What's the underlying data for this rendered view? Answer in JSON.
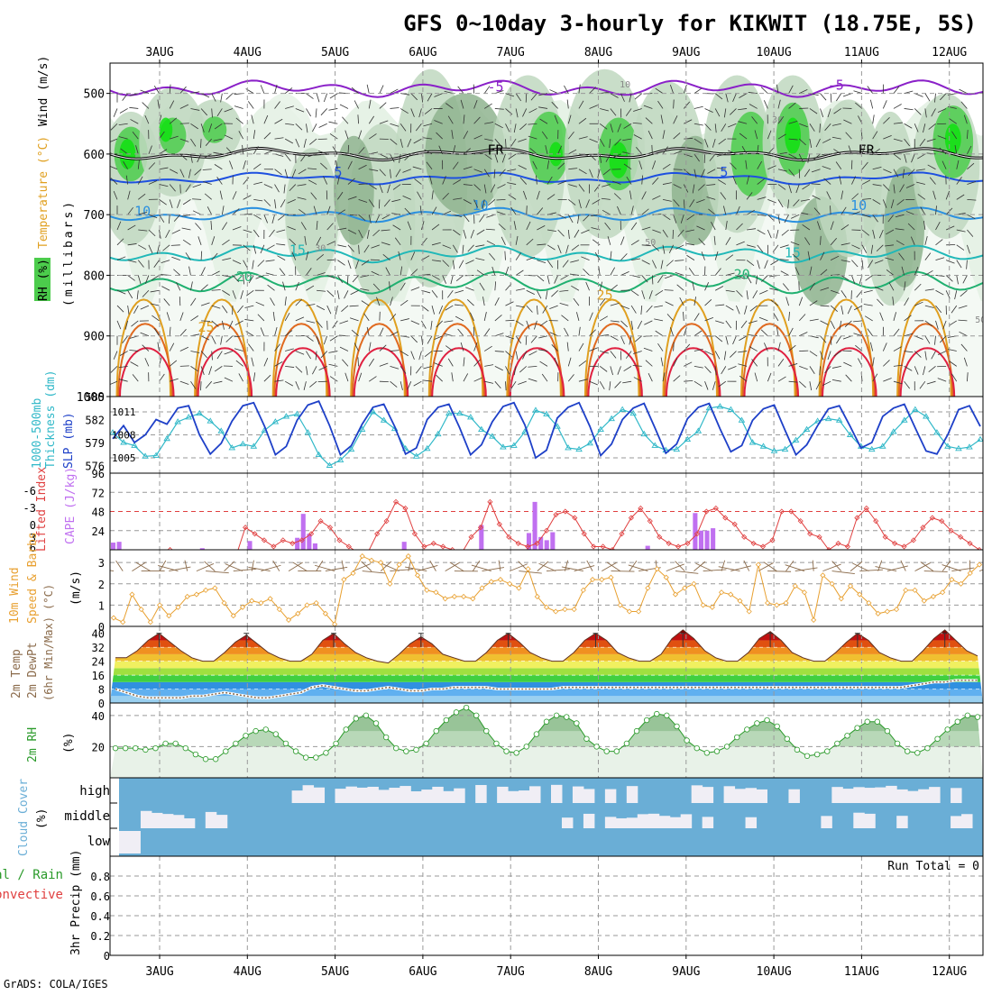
{
  "header": {
    "title": "GFS 0~10day 3-hourly for KIKWIT (18.75E, 5S)",
    "footer": "GrADS: COLA/IGES"
  },
  "dates": [
    "3AUG",
    "4AUG",
    "5AUG",
    "6AUG",
    "7AUG",
    "8AUG",
    "9AUG",
    "10AUG",
    "11AUG",
    "12AUG"
  ],
  "colors": {
    "rh_light": "#e6f2e6",
    "rh_mid": "#c0d8c0",
    "rh_dark": "#8fb48f",
    "rh_green": "#4ccc4c",
    "rh_bright": "#10e010",
    "t_m5": "#8a20c8",
    "t_5": "#1e50e0",
    "t_10": "#2a90e0",
    "t_15": "#20b8b8",
    "t_20": "#20b070",
    "t_25": "#e0a020",
    "t_30": "#e06a20",
    "t_35": "#e02040",
    "slp": "#1e40c8",
    "thickness": "#30b8c8",
    "cape": "#c070f0",
    "lifted": "#e04040",
    "wind10": "#e8a030",
    "dewpt": "#8a6a4a",
    "rh2m": "#2a9a2a",
    "cloud": "#6aaed6",
    "cloud_clear": "#f0eef5",
    "grid": "#999999"
  },
  "chart_data": [
    {
      "panel": "upper-air",
      "type": "heatmap",
      "label_left_1": "RH (%)",
      "label_left_2": "Temperature (°C)",
      "label_left_3": "Wind (m/s)",
      "ylabel": "(millibars)",
      "y_ticks": [
        500,
        600,
        700,
        800,
        900,
        1000
      ],
      "ylim": [
        1000,
        450
      ],
      "contour_labels": [
        {
          "text": "-5",
          "t": 14.9,
          "p": 497,
          "series": "t_m5"
        },
        {
          "text": "-5",
          "t": 28.3,
          "p": 494,
          "series": "t_m5"
        },
        {
          "text": "5",
          "t": 8.7,
          "p": 637,
          "series": "t_5"
        },
        {
          "text": "5",
          "t": 23.9,
          "p": 637,
          "series": "t_5"
        },
        {
          "text": "10",
          "t": 1.0,
          "p": 702,
          "series": "t_10"
        },
        {
          "text": "10",
          "t": 14.3,
          "p": 692,
          "series": "t_10"
        },
        {
          "text": "10",
          "t": 29.2,
          "p": 692,
          "series": "t_10"
        },
        {
          "text": "15",
          "t": 7.1,
          "p": 766,
          "series": "t_15"
        },
        {
          "text": "15",
          "t": 26.6,
          "p": 770,
          "series": "t_15"
        },
        {
          "text": "20",
          "t": 5.0,
          "p": 810,
          "series": "t_20"
        },
        {
          "text": "20",
          "t": 24.6,
          "p": 806,
          "series": "t_20"
        },
        {
          "text": "25",
          "t": 3.5,
          "p": 893,
          "series": "t_25"
        },
        {
          "text": "25",
          "t": 19.2,
          "p": 840,
          "series": "t_25"
        },
        {
          "text": "FR",
          "t": 14.9,
          "p": 601,
          "series": "freezing"
        },
        {
          "text": "FR",
          "t": 29.5,
          "p": 601,
          "series": "freezing"
        },
        {
          "text": "30",
          "t": 8.0,
          "p": 760,
          "series": "rh"
        },
        {
          "text": "50",
          "t": 21.0,
          "p": 750,
          "series": "rh"
        },
        {
          "text": "50",
          "t": 34.0,
          "p": 878,
          "series": "rh"
        },
        {
          "text": "30",
          "t": 26.0,
          "p": 548,
          "series": "rh"
        },
        {
          "text": "10",
          "t": 20.0,
          "p": 490,
          "series": "rh"
        }
      ]
    },
    {
      "panel": "slp-thickness",
      "type": "line",
      "label_left_1": "1000-500mb",
      "label_left_2": "Thickness (dm)",
      "label_right": "SLP (mb)",
      "y_ticks_thickness": [
        576,
        579,
        582,
        585
      ],
      "y_ticks_slp": [
        1005,
        1008,
        1011
      ],
      "ylim_thickness": [
        575,
        585
      ],
      "ylim_slp": [
        1003,
        1013
      ],
      "series": [
        {
          "name": "SLP",
          "values": [
            1007.5,
            1009.2,
            1007.0,
            1008.0,
            1010.0,
            1009.4,
            1011.5,
            1011.8,
            1008.0,
            1005.5,
            1006.9,
            1009.8,
            1011.8,
            1012.2,
            1009.1,
            1005.4,
            1006.5,
            1009.9,
            1011.9,
            1012.4,
            1009.2,
            1005.4,
            1006.6,
            1009.4,
            1011.6,
            1012.0,
            1009.1,
            1005.5,
            1006.3,
            1010.0,
            1011.6,
            1012.0,
            1008.9,
            1005.4,
            1006.7,
            1009.7,
            1011.7,
            1012.2,
            1009.3,
            1005.0,
            1006.0,
            1010.2,
            1011.6,
            1012.2,
            1009.1,
            1005.3,
            1006.8,
            1010.0,
            1011.5,
            1012.1,
            1008.9,
            1005.6,
            1006.8,
            1010.1,
            1011.6,
            1012.1,
            1008.8,
            1005.8,
            1006.6,
            1009.9,
            1011.4,
            1011.9,
            1008.6,
            1005.4,
            1006.7,
            1009.2,
            1011.4,
            1011.8,
            1009.1,
            1006.3,
            1007.0,
            1010.4,
            1011.5,
            1012.0,
            1008.9,
            1005.9,
            1005.5,
            1008.0,
            1011.3,
            1011.8,
            1009.1
          ]
        },
        {
          "name": "Thickness",
          "values": [
            580.3,
            579.0,
            578.6,
            577.2,
            577.3,
            579.5,
            581.7,
            582.3,
            582.8,
            581.8,
            580.5,
            578.3,
            578.8,
            578.5,
            580.6,
            581.7,
            582.4,
            582.7,
            580.3,
            577.4,
            576.0,
            576.7,
            578.1,
            580.7,
            583.0,
            581.9,
            580.8,
            578.2,
            577.2,
            578.2,
            580.1,
            582.8,
            582.8,
            582.3,
            580.7,
            579.8,
            578.4,
            578.6,
            580.4,
            583.2,
            582.7,
            581.1,
            578.3,
            578.1,
            578.9,
            580.7,
            582.1,
            583.3,
            582.8,
            580.1,
            578.6,
            578.0,
            578.1,
            579.4,
            580.5,
            583.5,
            583.7,
            583.3,
            581.9,
            579.0,
            578.5,
            577.9,
            578.1,
            579.3,
            580.7,
            581.8,
            582.1,
            581.9,
            580.0,
            578.5,
            578.1,
            578.5,
            580.4,
            581.9,
            583.3,
            582.4,
            580.3,
            578.5,
            578.2,
            578.4,
            579.4
          ]
        }
      ]
    },
    {
      "panel": "cape-lifted",
      "type": "bar",
      "label_left_1": "Lifted Index",
      "label_right": "CAPE (J/kg)",
      "y_ticks_li": [
        "-6",
        "-3",
        "0",
        "3",
        "6"
      ],
      "y_ticks_cape": [
        24,
        48,
        72,
        96
      ],
      "ylim_cape": [
        0,
        96
      ],
      "ylim_li": [
        6,
        -9
      ],
      "series": [
        {
          "name": "CAPE",
          "values": [
            9,
            10,
            0,
            0,
            0,
            0,
            0,
            0,
            0,
            0,
            0,
            0,
            0,
            0,
            0,
            2,
            0,
            0,
            0,
            0,
            0,
            0,
            0,
            11,
            0,
            0,
            0,
            0,
            0,
            0,
            0,
            15,
            45,
            20,
            8,
            0,
            0,
            0,
            0,
            0,
            0,
            0,
            0,
            0,
            0,
            0,
            0,
            0,
            0,
            10,
            0,
            0,
            0,
            0,
            0,
            0,
            0,
            0,
            0,
            0,
            0,
            0,
            31,
            0,
            0,
            0,
            0,
            0,
            0,
            0,
            21,
            60,
            16,
            12,
            22,
            0,
            0,
            0,
            0,
            0,
            0,
            0,
            0,
            0,
            0,
            0,
            0,
            0,
            0,
            0,
            5,
            0,
            0,
            0,
            0,
            0,
            0,
            0,
            46,
            24,
            24,
            27,
            0,
            0,
            0,
            0,
            0,
            0,
            0,
            0,
            0,
            0,
            0,
            0,
            0,
            0,
            0,
            0,
            0,
            0,
            0,
            0,
            0,
            0,
            0,
            0,
            0,
            0,
            0,
            0,
            0,
            0,
            0,
            0,
            0,
            0,
            0,
            0,
            0,
            0,
            0,
            0,
            0,
            0,
            0,
            0,
            0
          ]
        },
        {
          "name": "Lifted Index",
          "values": [
            8,
            9,
            9,
            9,
            8,
            7,
            6,
            7,
            8,
            8,
            9,
            9,
            8,
            7,
            2.5,
            3.5,
            4.5,
            5.5,
            4.5,
            5,
            4.5,
            3.5,
            1.5,
            2.5,
            4.5,
            5.5,
            6.5,
            6.5,
            3.5,
            1.5,
            -1.5,
            -0.5,
            3.5,
            5.5,
            5,
            5.5,
            6,
            6.5,
            4,
            2.5,
            -1.5,
            2,
            4,
            5,
            5.5,
            5,
            3,
            0.5,
            0,
            1,
            3.5,
            5.5,
            5.5,
            6,
            3.5,
            1,
            -0.5,
            1.5,
            4,
            5,
            5.5,
            5,
            3.5,
            0,
            -0.5,
            1,
            2,
            4,
            5,
            5.5,
            4.5,
            0,
            0,
            1.5,
            3.5,
            4,
            6,
            5,
            5.5,
            1,
            -0.5,
            1.5,
            4,
            5,
            5.5,
            4.5,
            2.5,
            1,
            1.5,
            3,
            4,
            5,
            6
          ]
        }
      ]
    },
    {
      "panel": "wind10m",
      "type": "line",
      "label_left_1": "10m Wind",
      "label_left_2": "Speed & Barbs",
      "ylabel": "(m/s)",
      "y_ticks": [
        0,
        1,
        2,
        3
      ],
      "ylim": [
        0,
        3.6
      ],
      "series": [
        {
          "name": "10m Wind Speed",
          "values": [
            0.4,
            0.2,
            1.5,
            0.8,
            0.2,
            1.0,
            0.5,
            0.9,
            1.4,
            1.5,
            1.7,
            1.8,
            1.1,
            0.5,
            0.9,
            1.2,
            1.1,
            1.3,
            0.8,
            0.3,
            0.6,
            1.0,
            1.1,
            0.6,
            0.1,
            2.2,
            2.5,
            3.3,
            3.1,
            3.0,
            2.0,
            2.9,
            3.3,
            2.4,
            1.7,
            1.6,
            1.3,
            1.4,
            1.4,
            1.3,
            1.8,
            2.1,
            2.2,
            2.0,
            1.8,
            2.7,
            1.4,
            0.9,
            0.7,
            0.8,
            0.8,
            1.7,
            2.2,
            2.2,
            2.3,
            1.0,
            0.7,
            0.7,
            1.8,
            2.7,
            2.3,
            1.5,
            1.8,
            2.0,
            1.0,
            0.9,
            1.6,
            1.5,
            1.2,
            0.7,
            2.9,
            1.1,
            1.0,
            1.1,
            1.9,
            1.6,
            0.3,
            2.4,
            2.0,
            1.3,
            1.9,
            1.5,
            1.1,
            0.6,
            0.7,
            0.8,
            1.7,
            1.7,
            1.2,
            1.4,
            1.6,
            2.2,
            2.0,
            2.5,
            2.9
          ]
        }
      ]
    },
    {
      "panel": "temp2m",
      "type": "area",
      "label_left_1": "2m Temp",
      "label_left_2": "2m DewPt",
      "label_left_3": "(6hr Min/Max) (°C)",
      "y_ticks": [
        0,
        8,
        16,
        24,
        32,
        40
      ],
      "ylim": [
        0,
        44
      ],
      "series": [
        {
          "name": "2m Temp",
          "values": [
            26,
            26,
            30,
            36,
            40,
            35,
            30,
            26,
            24,
            24,
            29,
            35,
            39,
            34,
            29,
            26,
            24,
            24,
            28,
            36,
            40,
            34,
            29,
            26,
            24,
            23,
            28,
            34,
            38,
            34,
            28,
            26,
            24,
            24,
            29,
            36,
            40,
            35,
            29,
            26,
            24,
            24,
            29,
            36,
            40,
            36,
            29,
            26,
            24,
            24,
            28,
            37,
            42,
            37,
            30,
            26,
            24,
            24,
            29,
            37,
            41,
            36,
            29,
            26,
            24,
            24,
            29,
            35,
            40,
            36,
            29,
            26,
            24,
            24,
            30,
            37,
            42,
            36,
            30,
            27
          ]
        },
        {
          "name": "2m DewPt",
          "values": [
            8,
            6,
            4,
            3,
            3,
            3,
            3,
            4,
            4,
            5,
            6,
            5,
            4,
            3,
            3,
            4,
            5,
            6,
            9,
            10,
            9,
            8,
            7,
            7,
            8,
            9,
            8,
            7,
            7,
            8,
            8,
            9,
            9,
            9,
            9,
            8,
            8,
            8,
            8,
            8,
            8,
            9,
            9,
            9,
            9,
            9,
            9,
            9,
            9,
            9,
            9,
            9,
            9,
            9,
            9,
            9,
            9,
            9,
            9,
            9,
            9,
            9,
            9,
            9,
            9,
            9,
            9,
            9,
            9,
            9,
            9,
            9,
            9,
            10,
            11,
            12,
            12,
            13,
            13,
            13
          ]
        }
      ]
    },
    {
      "panel": "rh2m",
      "type": "area",
      "label_left_1": "2m RH",
      "ylabel": "(%)",
      "y_ticks": [
        20,
        40
      ],
      "ylim": [
        0,
        48
      ],
      "series": [
        {
          "name": "2m RH",
          "values": [
            19,
            19,
            19,
            18,
            19,
            22,
            22,
            19,
            15,
            12,
            12,
            17,
            22,
            27,
            30,
            31,
            28,
            22,
            17,
            13,
            13,
            16,
            22,
            31,
            38,
            40,
            35,
            26,
            19,
            17,
            18,
            22,
            30,
            37,
            42,
            45,
            40,
            30,
            22,
            17,
            16,
            20,
            28,
            36,
            40,
            39,
            35,
            25,
            20,
            17,
            17,
            22,
            30,
            37,
            41,
            40,
            33,
            24,
            19,
            16,
            17,
            20,
            26,
            31,
            35,
            37,
            33,
            25,
            18,
            14,
            15,
            17,
            22,
            27,
            32,
            36,
            36,
            30,
            22,
            17,
            16,
            19,
            25,
            31,
            36,
            40,
            39
          ]
        }
      ]
    },
    {
      "panel": "cloud",
      "type": "heatmap",
      "label_left_1": "Cloud Cover",
      "ylabel": "(%)",
      "rows": [
        "high",
        "middle",
        "low"
      ]
    },
    {
      "panel": "precip",
      "type": "bar",
      "label_left_1": "Total / Rain",
      "label_left_2": "Convective",
      "ylabel": "3hr Precip (mm)",
      "y_ticks": [
        "0",
        "0.2",
        "0.4",
        "0.6",
        "0.8"
      ],
      "ylim": [
        0,
        1
      ],
      "run_total": "Run Total = 0",
      "values": []
    }
  ]
}
